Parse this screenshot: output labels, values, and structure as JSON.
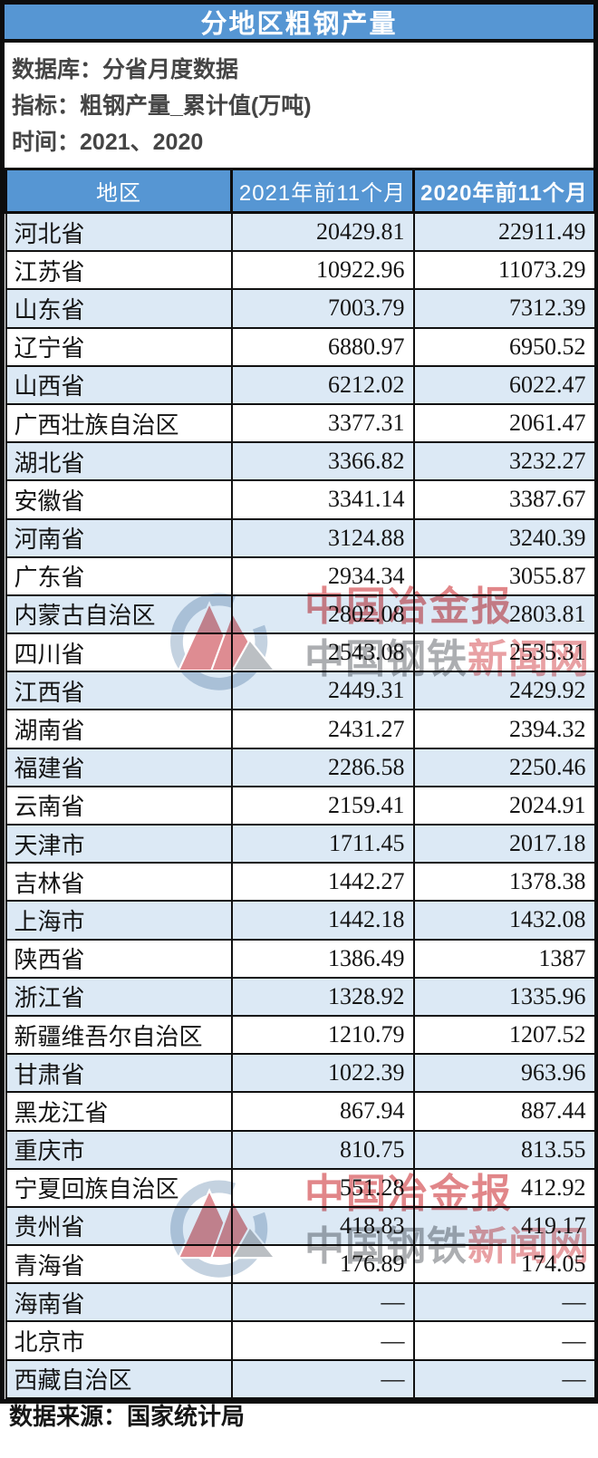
{
  "page": {
    "title": "分地区粗钢产量",
    "footer": "数据来源：国家统计局",
    "colors": {
      "header_blue": "#5696d3",
      "row_alt_blue": "#dce9f5",
      "border_black": "#0d0d0d",
      "watermark_red": "#d96468",
      "watermark_gray": "#95989b",
      "watermark_pink": "#e2868a"
    }
  },
  "meta": {
    "lines": [
      {
        "label": "数据库：",
        "value": "分省月度数据"
      },
      {
        "label": "指标：",
        "value": "粗钢产量_累计值(万吨)"
      },
      {
        "label": "时间：",
        "value": "2021、2020"
      }
    ]
  },
  "watermark": {
    "logo": "china-metallurgical-news-logo",
    "line1": "中国冶金报",
    "line2_gray": "中国钢铁",
    "line2_red": "新闻网"
  },
  "chart_data": {
    "type": "table",
    "title": "分地区粗钢产量",
    "unit": "万吨",
    "columns": [
      "地区",
      "2021年前11个月",
      "2020年前11个月"
    ],
    "rows": [
      [
        "河北省",
        "20429.81",
        "22911.49"
      ],
      [
        "江苏省",
        "10922.96",
        "11073.29"
      ],
      [
        "山东省",
        "7003.79",
        "7312.39"
      ],
      [
        "辽宁省",
        "6880.97",
        "6950.52"
      ],
      [
        "山西省",
        "6212.02",
        "6022.47"
      ],
      [
        "广西壮族自治区",
        "3377.31",
        "2061.47"
      ],
      [
        "湖北省",
        "3366.82",
        "3232.27"
      ],
      [
        "安徽省",
        "3341.14",
        "3387.67"
      ],
      [
        "河南省",
        "3124.88",
        "3240.39"
      ],
      [
        "广东省",
        "2934.34",
        "3055.87"
      ],
      [
        "内蒙古自治区",
        "2802.08",
        "2803.81"
      ],
      [
        "四川省",
        "2543.08",
        "2535.31"
      ],
      [
        "江西省",
        "2449.31",
        "2429.92"
      ],
      [
        "湖南省",
        "2431.27",
        "2394.32"
      ],
      [
        "福建省",
        "2286.58",
        "2250.46"
      ],
      [
        "云南省",
        "2159.41",
        "2024.91"
      ],
      [
        "天津市",
        "1711.45",
        "2017.18"
      ],
      [
        "吉林省",
        "1442.27",
        "1378.38"
      ],
      [
        "上海市",
        "1442.18",
        "1432.08"
      ],
      [
        "陕西省",
        "1386.49",
        "1387"
      ],
      [
        "浙江省",
        "1328.92",
        "1335.96"
      ],
      [
        "新疆维吾尔自治区",
        "1210.79",
        "1207.52"
      ],
      [
        "甘肃省",
        "1022.39",
        "963.96"
      ],
      [
        "黑龙江省",
        "867.94",
        "887.44"
      ],
      [
        "重庆市",
        "810.75",
        "813.55"
      ],
      [
        "宁夏回族自治区",
        "551.28",
        "412.92"
      ],
      [
        "贵州省",
        "418.83",
        "419.17"
      ],
      [
        "青海省",
        "176.89",
        "174.05"
      ],
      [
        "海南省",
        "—",
        "—"
      ],
      [
        "北京市",
        "—",
        "—"
      ],
      [
        "西藏自治区",
        "—",
        "—"
      ]
    ]
  }
}
